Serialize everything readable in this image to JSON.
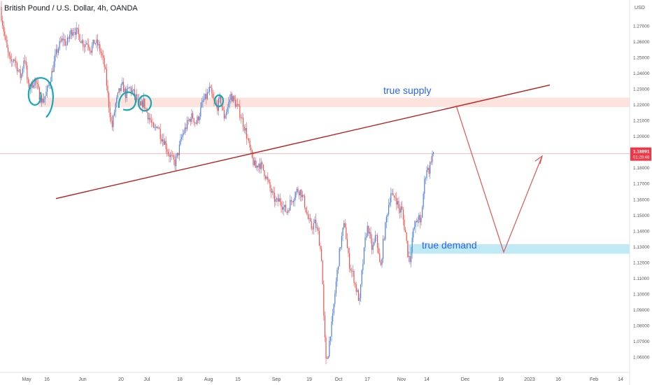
{
  "header": {
    "title": "British Pound / U.S. Dollar, 4h, OANDA"
  },
  "chart_data": {
    "type": "candlestick",
    "currency": "USD",
    "y_ticks": [
      "1.27000",
      "1.26000",
      "1.25000",
      "1.24000",
      "1.23000",
      "1.22000",
      "1.21000",
      "1.20000",
      "1.18000",
      "1.17000",
      "1.16000",
      "1.15000",
      "1.14000",
      "1.13000",
      "1.12000",
      "1.11000",
      "1.10000",
      "1.09000",
      "1.08000",
      "1.07000",
      "1.06000"
    ],
    "x_ticks": [
      "May",
      "16",
      "Jun",
      "20",
      "Jul",
      "18",
      "Aug",
      "15",
      "Sep",
      "19",
      "Oct",
      "17",
      "Nov",
      "14",
      "Dec",
      "19",
      "2023",
      "16",
      "Feb",
      "14"
    ],
    "last_price": {
      "value": "1.18891",
      "countdown": "01:28:48",
      "color": "#f23645"
    },
    "price_path": [
      [
        0,
        1.282
      ],
      [
        5,
        1.268
      ],
      [
        10,
        1.255
      ],
      [
        15,
        1.246
      ],
      [
        20,
        1.25
      ],
      [
        25,
        1.243
      ],
      [
        30,
        1.237
      ],
      [
        35,
        1.252
      ],
      [
        40,
        1.231
      ],
      [
        45,
        1.232
      ],
      [
        50,
        1.236
      ],
      [
        55,
        1.228
      ],
      [
        60,
        1.222
      ],
      [
        65,
        1.226
      ],
      [
        70,
        1.233
      ],
      [
        75,
        1.242
      ],
      [
        80,
        1.252
      ],
      [
        85,
        1.258
      ],
      [
        90,
        1.262
      ],
      [
        95,
        1.258
      ],
      [
        100,
        1.265
      ],
      [
        105,
        1.268
      ],
      [
        110,
        1.266
      ],
      [
        115,
        1.262
      ],
      [
        120,
        1.258
      ],
      [
        125,
        1.26
      ],
      [
        130,
        1.255
      ],
      [
        135,
        1.26
      ],
      [
        140,
        1.258
      ],
      [
        145,
        1.252
      ],
      [
        150,
        1.243
      ],
      [
        155,
        1.222
      ],
      [
        160,
        1.205
      ],
      [
        165,
        1.22
      ],
      [
        170,
        1.228
      ],
      [
        175,
        1.232
      ],
      [
        180,
        1.226
      ],
      [
        185,
        1.231
      ],
      [
        190,
        1.228
      ],
      [
        195,
        1.224
      ],
      [
        200,
        1.218
      ],
      [
        205,
        1.222
      ],
      [
        210,
        1.215
      ],
      [
        215,
        1.21
      ],
      [
        220,
        1.203
      ],
      [
        225,
        1.208
      ],
      [
        230,
        1.2
      ],
      [
        235,
        1.197
      ],
      [
        240,
        1.19
      ],
      [
        245,
        1.186
      ],
      [
        250,
        1.183
      ],
      [
        255,
        1.19
      ],
      [
        260,
        1.2
      ],
      [
        265,
        1.205
      ],
      [
        270,
        1.21
      ],
      [
        275,
        1.213
      ],
      [
        280,
        1.208
      ],
      [
        285,
        1.214
      ],
      [
        290,
        1.222
      ],
      [
        295,
        1.225
      ],
      [
        300,
        1.23
      ],
      [
        305,
        1.222
      ],
      [
        310,
        1.218
      ],
      [
        315,
        1.224
      ],
      [
        320,
        1.212
      ],
      [
        325,
        1.218
      ],
      [
        330,
        1.226
      ],
      [
        335,
        1.222
      ],
      [
        340,
        1.218
      ],
      [
        345,
        1.212
      ],
      [
        350,
        1.205
      ],
      [
        355,
        1.196
      ],
      [
        360,
        1.186
      ],
      [
        365,
        1.18
      ],
      [
        370,
        1.183
      ],
      [
        375,
        1.18
      ],
      [
        380,
        1.175
      ],
      [
        385,
        1.168
      ],
      [
        390,
        1.162
      ],
      [
        395,
        1.158
      ],
      [
        400,
        1.16
      ],
      [
        405,
        1.155
      ],
      [
        410,
        1.152
      ],
      [
        415,
        1.158
      ],
      [
        420,
        1.162
      ],
      [
        425,
        1.166
      ],
      [
        430,
        1.165
      ],
      [
        435,
        1.158
      ],
      [
        440,
        1.148
      ],
      [
        445,
        1.142
      ],
      [
        450,
        1.145
      ],
      [
        455,
        1.138
      ],
      [
        460,
        1.122
      ],
      [
        463,
        1.082
      ],
      [
        466,
        1.057
      ],
      [
        469,
        1.062
      ],
      [
        472,
        1.075
      ],
      [
        475,
        1.082
      ],
      [
        478,
        1.097
      ],
      [
        481,
        1.11
      ],
      [
        484,
        1.122
      ],
      [
        487,
        1.132
      ],
      [
        490,
        1.14
      ],
      [
        493,
        1.145
      ],
      [
        496,
        1.13
      ],
      [
        499,
        1.12
      ],
      [
        502,
        1.115
      ],
      [
        505,
        1.112
      ],
      [
        508,
        1.105
      ],
      [
        511,
        1.1
      ],
      [
        514,
        1.095
      ],
      [
        517,
        1.112
      ],
      [
        520,
        1.125
      ],
      [
        523,
        1.138
      ],
      [
        526,
        1.143
      ],
      [
        529,
        1.135
      ],
      [
        532,
        1.128
      ],
      [
        535,
        1.132
      ],
      [
        538,
        1.138
      ],
      [
        541,
        1.125
      ],
      [
        544,
        1.115
      ],
      [
        547,
        1.13
      ],
      [
        550,
        1.14
      ],
      [
        553,
        1.15
      ],
      [
        556,
        1.158
      ],
      [
        559,
        1.165
      ],
      [
        562,
        1.16
      ],
      [
        565,
        1.162
      ],
      [
        568,
        1.158
      ],
      [
        571,
        1.152
      ],
      [
        574,
        1.155
      ],
      [
        577,
        1.145
      ],
      [
        580,
        1.138
      ],
      [
        583,
        1.125
      ],
      [
        586,
        1.122
      ],
      [
        589,
        1.135
      ],
      [
        592,
        1.142
      ],
      [
        595,
        1.145
      ],
      [
        598,
        1.15
      ],
      [
        601,
        1.142
      ],
      [
        604,
        1.158
      ],
      [
        607,
        1.172
      ],
      [
        610,
        1.18
      ],
      [
        613,
        1.178
      ],
      [
        616,
        1.185
      ],
      [
        619,
        1.19
      ],
      [
        621,
        1.189
      ]
    ]
  },
  "annotations": {
    "supply_label": "true supply",
    "demand_label": "true demand",
    "trendline_color": "#b22222",
    "projection_color": "#e05555",
    "supply_zone_color": "#fde3dd",
    "demand_zone_color": "#bfeaf5",
    "circle_color": "#17a8b8",
    "label_color": "#2962ff"
  }
}
